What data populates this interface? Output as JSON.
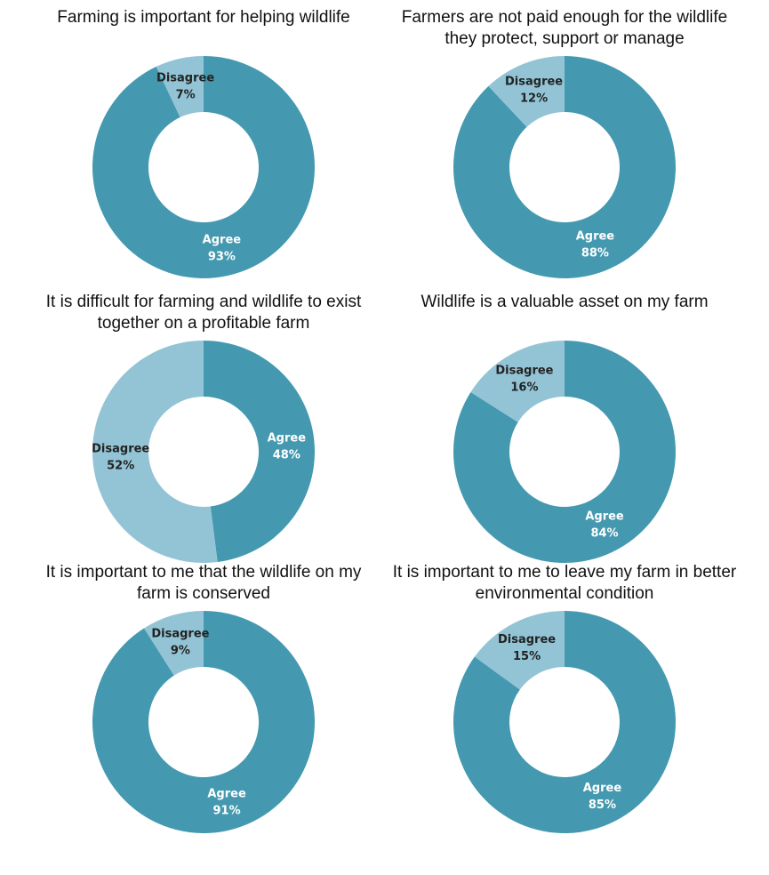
{
  "chart_data": [
    {
      "type": "donut",
      "title": "Farming is important for helping wildlife",
      "categories": [
        "Agree",
        "Disagree"
      ],
      "values": [
        93,
        7
      ],
      "value_labels": [
        "93%",
        "7%"
      ],
      "colors": [
        "#4499b0",
        "#93c4d6"
      ]
    },
    {
      "type": "donut",
      "title": "Farmers are not paid enough for the wildlife they protect, support or manage",
      "categories": [
        "Agree",
        "Disagree"
      ],
      "values": [
        88,
        12
      ],
      "value_labels": [
        "88%",
        "12%"
      ],
      "colors": [
        "#4499b0",
        "#93c4d6"
      ]
    },
    {
      "type": "donut",
      "title": "It is difficult for farming and wildlife to exist together on a profitable farm",
      "categories": [
        "Agree",
        "Disagree"
      ],
      "values": [
        48,
        52
      ],
      "value_labels": [
        "48%",
        "52%"
      ],
      "colors": [
        "#4499b0",
        "#93c4d6"
      ]
    },
    {
      "type": "donut",
      "title": "Wildlife is a valuable asset on my farm",
      "categories": [
        "Agree",
        "Disagree"
      ],
      "values": [
        84,
        16
      ],
      "value_labels": [
        "84%",
        "16%"
      ],
      "colors": [
        "#4499b0",
        "#93c4d6"
      ]
    },
    {
      "type": "donut",
      "title": "It is important to me that the wildlife on my farm is conserved",
      "categories": [
        "Agree",
        "Disagree"
      ],
      "values": [
        91,
        9
      ],
      "value_labels": [
        "91%",
        "9%"
      ],
      "colors": [
        "#4499b0",
        "#93c4d6"
      ]
    },
    {
      "type": "donut",
      "title": "It is important to me to leave my farm in better environmental condition",
      "categories": [
        "Agree",
        "Disagree"
      ],
      "values": [
        85,
        15
      ],
      "value_labels": [
        "85%",
        "15%"
      ],
      "colors": [
        "#4499b0",
        "#93c4d6"
      ]
    }
  ]
}
